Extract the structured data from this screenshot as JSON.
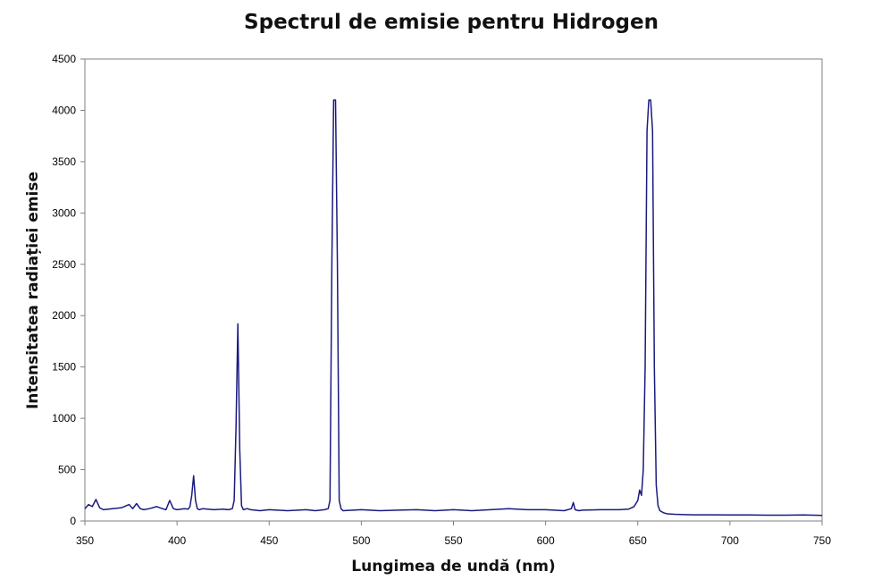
{
  "chart_data": {
    "type": "line",
    "title": "Spectrul de emisie pentru Hidrogen",
    "xlabel": "Lungimea de undă (nm)",
    "ylabel": "Intensitatea radiației emise",
    "xlim": [
      350,
      750
    ],
    "ylim": [
      0,
      4500
    ],
    "x_ticks": [
      350,
      400,
      450,
      500,
      550,
      600,
      650,
      700,
      750
    ],
    "y_ticks": [
      0,
      500,
      1000,
      1500,
      2000,
      2500,
      3000,
      3500,
      4000,
      4500
    ],
    "grid": false,
    "legend": "none",
    "line_color": "#1a1a80",
    "series": [
      {
        "x": [
          350,
          352,
          354,
          356,
          358,
          360,
          365,
          370,
          374,
          376,
          378,
          380,
          382,
          385,
          389,
          392,
          394,
          396,
          398,
          400,
          404,
          406,
          407,
          408,
          409,
          410,
          411,
          412,
          414,
          420,
          425,
          428,
          430,
          431,
          432,
          433,
          434,
          435,
          436,
          438,
          440,
          445,
          450,
          460,
          470,
          475,
          480,
          482,
          483,
          484,
          485,
          486,
          487,
          488,
          489,
          490,
          500,
          510,
          520,
          530,
          540,
          550,
          560,
          570,
          580,
          590,
          600,
          610,
          612,
          614,
          615,
          616,
          618,
          620,
          630,
          640,
          645,
          648,
          650,
          651,
          652,
          653,
          654,
          655,
          656,
          657,
          658,
          659,
          660,
          661,
          662,
          664,
          666,
          670,
          680,
          690,
          700,
          710,
          720,
          730,
          740,
          750
        ],
        "y": [
          120,
          160,
          140,
          210,
          130,
          110,
          120,
          130,
          160,
          120,
          170,
          120,
          110,
          120,
          140,
          120,
          110,
          200,
          120,
          110,
          120,
          115,
          140,
          250,
          440,
          200,
          120,
          110,
          120,
          110,
          115,
          110,
          120,
          200,
          900,
          1920,
          700,
          150,
          110,
          120,
          110,
          100,
          110,
          100,
          110,
          100,
          110,
          120,
          200,
          2500,
          4100,
          4100,
          2500,
          200,
          120,
          100,
          110,
          100,
          105,
          110,
          100,
          110,
          100,
          110,
          120,
          110,
          110,
          100,
          110,
          120,
          180,
          110,
          100,
          105,
          110,
          110,
          115,
          140,
          200,
          300,
          250,
          500,
          1500,
          3800,
          4100,
          4100,
          3800,
          1500,
          350,
          150,
          100,
          80,
          70,
          65,
          60,
          60,
          58,
          58,
          57,
          57,
          58,
          55
        ]
      }
    ]
  }
}
